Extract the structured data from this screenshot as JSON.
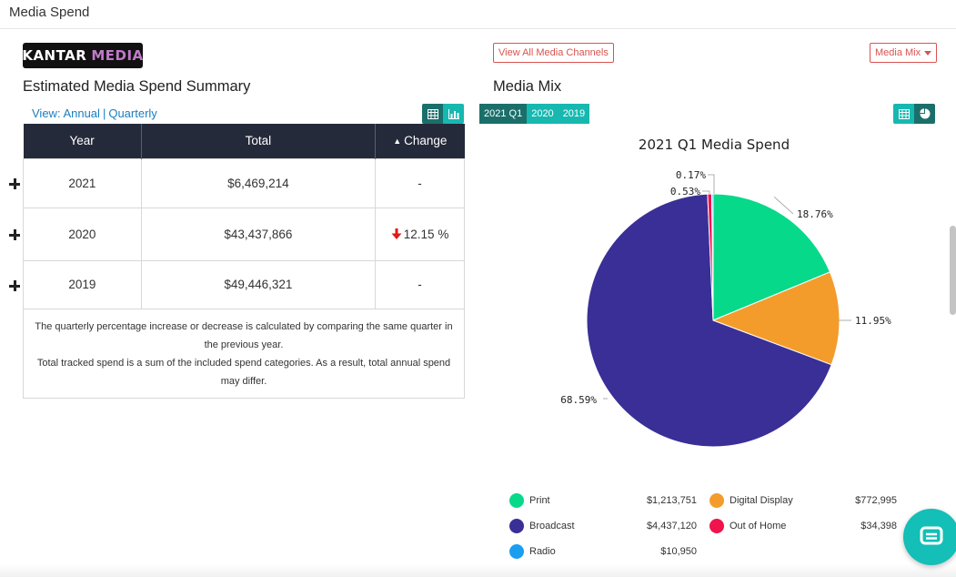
{
  "header": {
    "title": "Media Spend"
  },
  "logo": {
    "text_white": "KANTAR",
    "text_purple": "MEDIA"
  },
  "summary": {
    "title": "Estimated Media Spend Summary",
    "view_label": "View: Annual",
    "view_sep": "|",
    "view_quarterly": "Quarterly",
    "columns": [
      "Year",
      "Total",
      "Change"
    ],
    "sort_caret": "▲",
    "rows": [
      {
        "year": "2021",
        "total": "$6,469,214",
        "change": "-"
      },
      {
        "year": "2020",
        "total": "$43,437,866",
        "change": "12.15 %",
        "direction": "down"
      },
      {
        "year": "2019",
        "total": "$49,446,321",
        "change": "-"
      }
    ],
    "note_line1": "The quarterly percentage increase or decrease is calculated by comparing the same quarter in the previous year.",
    "note_line2": "Total tracked spend is a sum of the included spend categories. As a result, total annual spend may differ."
  },
  "media_mix": {
    "title": "Media Mix",
    "view_all_button": "View All Media Channels",
    "dropdown_label": "Media Mix",
    "year_tabs": [
      {
        "label": "2021 Q1",
        "active": true
      },
      {
        "label": "2020",
        "active": false
      },
      {
        "label": "2019",
        "active": false
      }
    ],
    "legend": [
      {
        "name": "Print",
        "value": "$1,213,751",
        "color": "#06d98a"
      },
      {
        "name": "Digital Display",
        "value": "$772,995",
        "color": "#f39c2b"
      },
      {
        "name": "Broadcast",
        "value": "$4,437,120",
        "color": "#3a2f96"
      },
      {
        "name": "Out of Home",
        "value": "$34,398",
        "color": "#f0144c"
      },
      {
        "name": "Radio",
        "value": "$10,950",
        "color": "#1a9ff0"
      }
    ]
  },
  "chart_data": {
    "type": "pie",
    "title": "2021 Q1 Media Spend",
    "categories": [
      "Print",
      "Digital Display",
      "Broadcast",
      "Out of Home",
      "Radio"
    ],
    "values": [
      18.76,
      11.95,
      68.59,
      0.53,
      0.17
    ],
    "labels": [
      "18.76%",
      "11.95%",
      "68.59%",
      "0.53%",
      "0.17%"
    ],
    "colors": [
      "#06d98a",
      "#f39c2b",
      "#3a2f96",
      "#f0144c",
      "#1a9ff0"
    ]
  }
}
